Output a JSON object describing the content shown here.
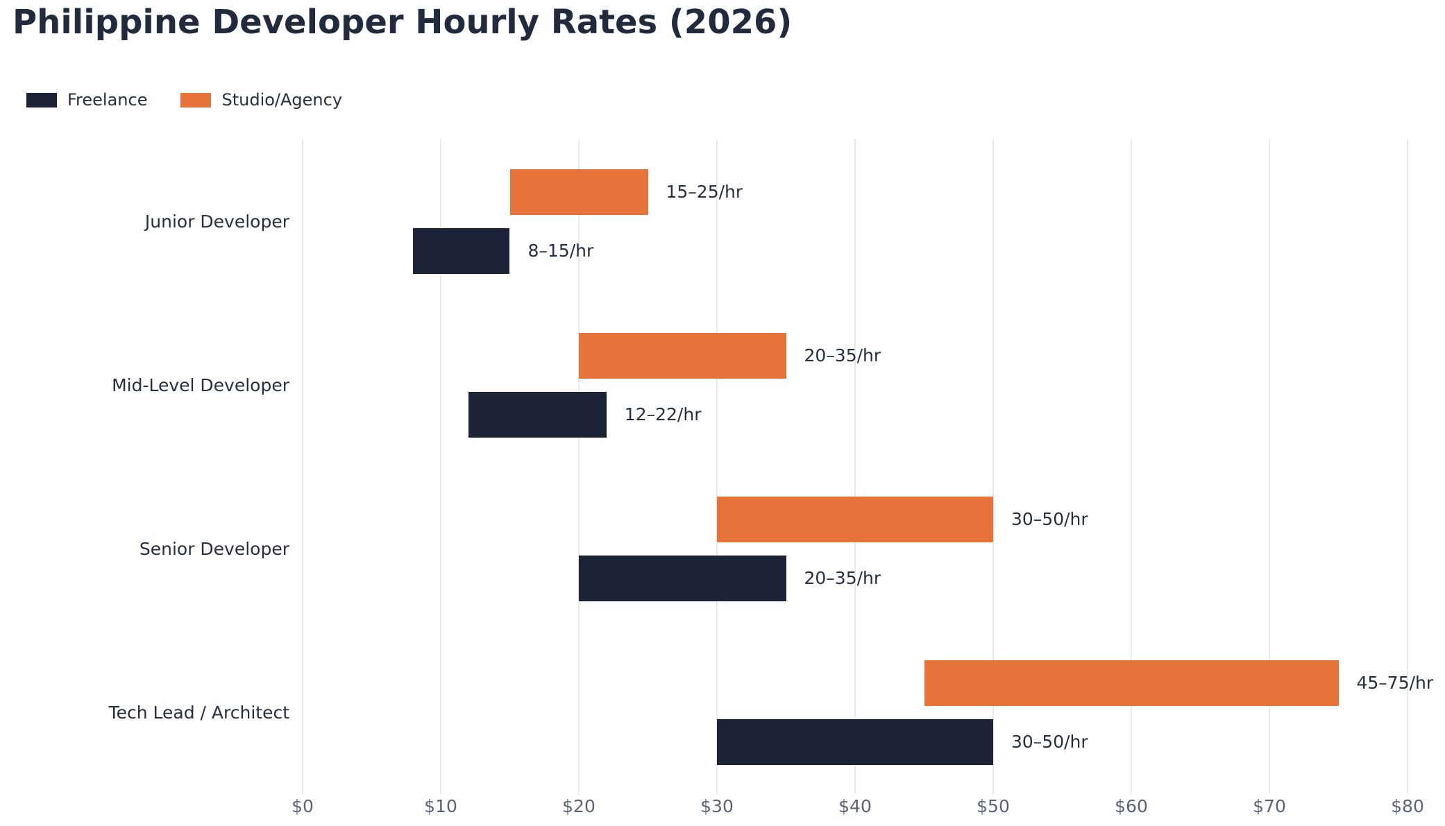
{
  "page_title": "Philippine Developer Hourly Rates (2026)",
  "legend": {
    "items": [
      {
        "label": "Freelance",
        "color": "#1d2336"
      },
      {
        "label": "Studio/Agency",
        "color": "#e6733a"
      }
    ]
  },
  "chart_data": {
    "type": "bar",
    "orientation": "horizontal",
    "title": "Philippine Developer Hourly Rates (2026)",
    "categories": [
      "Junior Developer",
      "Mid-Level Developer",
      "Senior Developer",
      "Tech Lead / Architect"
    ],
    "series": [
      {
        "name": "Studio/Agency",
        "color": "#e6733a",
        "ranges": [
          [
            15,
            25
          ],
          [
            20,
            35
          ],
          [
            30,
            50
          ],
          [
            45,
            75
          ]
        ],
        "labels": [
          "15–25/hr",
          "20–35/hr",
          "30–50/hr",
          "45–75/hr"
        ]
      },
      {
        "name": "Freelance",
        "color": "#1d2336",
        "ranges": [
          [
            8,
            15
          ],
          [
            12,
            22
          ],
          [
            20,
            35
          ],
          [
            30,
            50
          ]
        ],
        "labels": [
          "8–15/hr",
          "12–22/hr",
          "20–35/hr",
          "30–50/hr"
        ]
      }
    ],
    "x_ticks": [
      "$0",
      "$10",
      "$20",
      "$30",
      "$40",
      "$50",
      "$60",
      "$70",
      "$80"
    ],
    "x_tick_values": [
      0,
      10,
      20,
      30,
      40,
      50,
      60,
      70,
      80
    ],
    "xlim": [
      0,
      80
    ],
    "xlabel": "",
    "ylabel": "",
    "grid": true,
    "legend_position": "top-left"
  },
  "style": {
    "background": "#ffffff",
    "grid_color": "#e7e8ea",
    "tick_color": "#5b6274",
    "text_color": "#272e40",
    "title_color": "#222a3d"
  }
}
